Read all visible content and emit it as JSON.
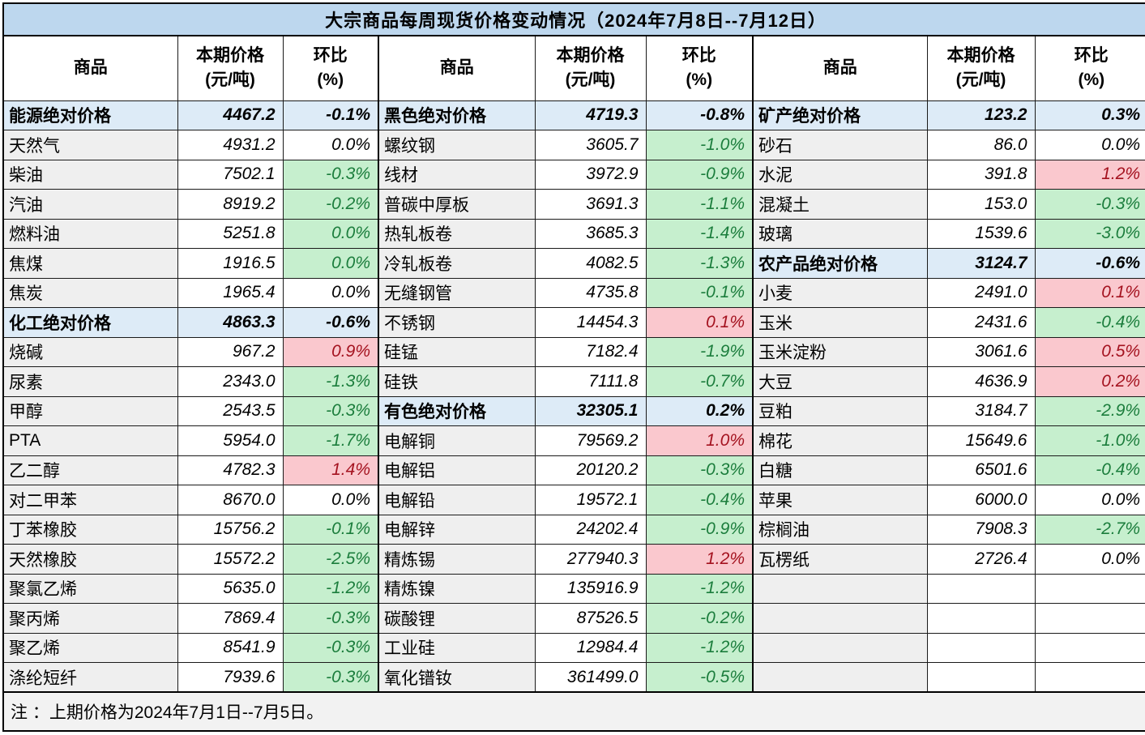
{
  "title": "大宗商品每周现货价格变动情况（2024年7月8日--7月12日）",
  "note": "注 ：上期价格为2024年7月1日--7月5日。",
  "headers": {
    "commodity": "商品",
    "price_line1": "本期价格",
    "price_line2": "(元/吨)",
    "pct_line1": "环比",
    "pct_line2": "(%)"
  },
  "colors": {
    "title_bg": "#BDD7EE",
    "section_bg": "#DDEBF7",
    "name_bg": "#EFEFEF",
    "up_bg": "#FAC8CE",
    "up_text": "#A4121F",
    "down_bg": "#C6EFCE",
    "down_text": "#1B7D3C",
    "note_bg": "#F2F2F2"
  },
  "chart_data": {
    "type": "table",
    "columns": [
      "商品",
      "本期价格(元/吨)",
      "环比(%)"
    ],
    "legend": {
      "up_style": "涨-红底红字",
      "down_style": "跌-绿底绿字",
      "section_style": "分类汇总-蓝底加粗"
    },
    "groups": [
      {
        "rows": [
          {
            "name": "能源绝对价格",
            "price": "4467.2",
            "pct": "-0.1%",
            "style": "section"
          },
          {
            "name": "天然气",
            "price": "4931.2",
            "pct": "0.0%",
            "style": "flat"
          },
          {
            "name": "柴油",
            "price": "7502.1",
            "pct": "-0.3%",
            "style": "down"
          },
          {
            "name": "汽油",
            "price": "8919.2",
            "pct": "-0.2%",
            "style": "down"
          },
          {
            "name": "燃料油",
            "price": "5251.8",
            "pct": "0.0%",
            "style": "down"
          },
          {
            "name": "焦煤",
            "price": "1916.5",
            "pct": "0.0%",
            "style": "down"
          },
          {
            "name": "焦炭",
            "price": "1965.4",
            "pct": "0.0%",
            "style": "flat"
          },
          {
            "name": "化工绝对价格",
            "price": "4863.3",
            "pct": "-0.6%",
            "style": "section"
          },
          {
            "name": "烧碱",
            "price": "967.2",
            "pct": "0.9%",
            "style": "up"
          },
          {
            "name": "尿素",
            "price": "2343.0",
            "pct": "-1.3%",
            "style": "down"
          },
          {
            "name": "甲醇",
            "price": "2543.5",
            "pct": "-0.3%",
            "style": "down"
          },
          {
            "name": "PTA",
            "price": "5954.0",
            "pct": "-1.7%",
            "style": "down"
          },
          {
            "name": "乙二醇",
            "price": "4782.3",
            "pct": "1.4%",
            "style": "up"
          },
          {
            "name": "对二甲苯",
            "price": "8670.0",
            "pct": "0.0%",
            "style": "flat"
          },
          {
            "name": "丁苯橡胶",
            "price": "15756.2",
            "pct": "-0.1%",
            "style": "down"
          },
          {
            "name": "天然橡胶",
            "price": "15572.2",
            "pct": "-2.5%",
            "style": "down"
          },
          {
            "name": "聚氯乙烯",
            "price": "5635.0",
            "pct": "-1.2%",
            "style": "down"
          },
          {
            "name": "聚丙烯",
            "price": "7869.4",
            "pct": "-0.3%",
            "style": "down"
          },
          {
            "name": "聚乙烯",
            "price": "8541.9",
            "pct": "-0.3%",
            "style": "down"
          },
          {
            "name": "涤纶短纤",
            "price": "7939.6",
            "pct": "-0.3%",
            "style": "down"
          }
        ]
      },
      {
        "rows": [
          {
            "name": "黑色绝对价格",
            "price": "4719.3",
            "pct": "-0.8%",
            "style": "section"
          },
          {
            "name": "螺纹钢",
            "price": "3605.7",
            "pct": "-1.0%",
            "style": "down"
          },
          {
            "name": "线材",
            "price": "3972.9",
            "pct": "-0.9%",
            "style": "down"
          },
          {
            "name": "普碳中厚板",
            "price": "3691.3",
            "pct": "-1.1%",
            "style": "down"
          },
          {
            "name": "热轧板卷",
            "price": "3685.3",
            "pct": "-1.4%",
            "style": "down"
          },
          {
            "name": "冷轧板卷",
            "price": "4082.5",
            "pct": "-1.3%",
            "style": "down"
          },
          {
            "name": "无缝钢管",
            "price": "4735.8",
            "pct": "-0.1%",
            "style": "down"
          },
          {
            "name": "不锈钢",
            "price": "14454.3",
            "pct": "0.1%",
            "style": "up"
          },
          {
            "name": "硅锰",
            "price": "7182.4",
            "pct": "-1.9%",
            "style": "down"
          },
          {
            "name": "硅铁",
            "price": "7111.8",
            "pct": "-0.7%",
            "style": "down"
          },
          {
            "name": "有色绝对价格",
            "price": "32305.1",
            "pct": "0.2%",
            "style": "section"
          },
          {
            "name": "电解铜",
            "price": "79569.2",
            "pct": "1.0%",
            "style": "up"
          },
          {
            "name": "电解铝",
            "price": "20120.2",
            "pct": "-0.3%",
            "style": "down"
          },
          {
            "name": "电解铅",
            "price": "19572.1",
            "pct": "-0.4%",
            "style": "down"
          },
          {
            "name": "电解锌",
            "price": "24202.4",
            "pct": "-0.9%",
            "style": "down"
          },
          {
            "name": "精炼锡",
            "price": "277940.3",
            "pct": "1.2%",
            "style": "up"
          },
          {
            "name": "精炼镍",
            "price": "135916.9",
            "pct": "-1.2%",
            "style": "down"
          },
          {
            "name": "碳酸锂",
            "price": "87526.5",
            "pct": "-0.2%",
            "style": "down"
          },
          {
            "name": "工业硅",
            "price": "12984.4",
            "pct": "-1.2%",
            "style": "down"
          },
          {
            "name": "氧化镨钕",
            "price": "361499.0",
            "pct": "-0.5%",
            "style": "down"
          }
        ]
      },
      {
        "rows": [
          {
            "name": "矿产绝对价格",
            "price": "123.2",
            "pct": "0.3%",
            "style": "section"
          },
          {
            "name": "砂石",
            "price": "86.0",
            "pct": "0.0%",
            "style": "flat"
          },
          {
            "name": "水泥",
            "price": "391.8",
            "pct": "1.2%",
            "style": "up"
          },
          {
            "name": "混凝土",
            "price": "153.0",
            "pct": "-0.3%",
            "style": "down"
          },
          {
            "name": "玻璃",
            "price": "1539.6",
            "pct": "-3.0%",
            "style": "down"
          },
          {
            "name": "农产品绝对价格",
            "price": "3124.7",
            "pct": "-0.6%",
            "style": "section"
          },
          {
            "name": "小麦",
            "price": "2491.0",
            "pct": "0.1%",
            "style": "up"
          },
          {
            "name": "玉米",
            "price": "2431.6",
            "pct": "-0.4%",
            "style": "down"
          },
          {
            "name": "玉米淀粉",
            "price": "3061.6",
            "pct": "0.5%",
            "style": "up"
          },
          {
            "name": "大豆",
            "price": "4636.9",
            "pct": "0.2%",
            "style": "up"
          },
          {
            "name": "豆粕",
            "price": "3184.7",
            "pct": "-2.9%",
            "style": "down"
          },
          {
            "name": "棉花",
            "price": "15649.6",
            "pct": "-1.0%",
            "style": "down"
          },
          {
            "name": "白糖",
            "price": "6501.6",
            "pct": "-0.4%",
            "style": "down"
          },
          {
            "name": "苹果",
            "price": "6000.0",
            "pct": "0.0%",
            "style": "flat"
          },
          {
            "name": "棕榈油",
            "price": "7908.3",
            "pct": "-2.7%",
            "style": "down"
          },
          {
            "name": "瓦楞纸",
            "price": "2726.4",
            "pct": "0.0%",
            "style": "flat"
          },
          {
            "name": "",
            "price": "",
            "pct": "",
            "style": "empty"
          },
          {
            "name": "",
            "price": "",
            "pct": "",
            "style": "empty"
          },
          {
            "name": "",
            "price": "",
            "pct": "",
            "style": "empty"
          },
          {
            "name": "",
            "price": "",
            "pct": "",
            "style": "empty"
          }
        ]
      }
    ]
  }
}
